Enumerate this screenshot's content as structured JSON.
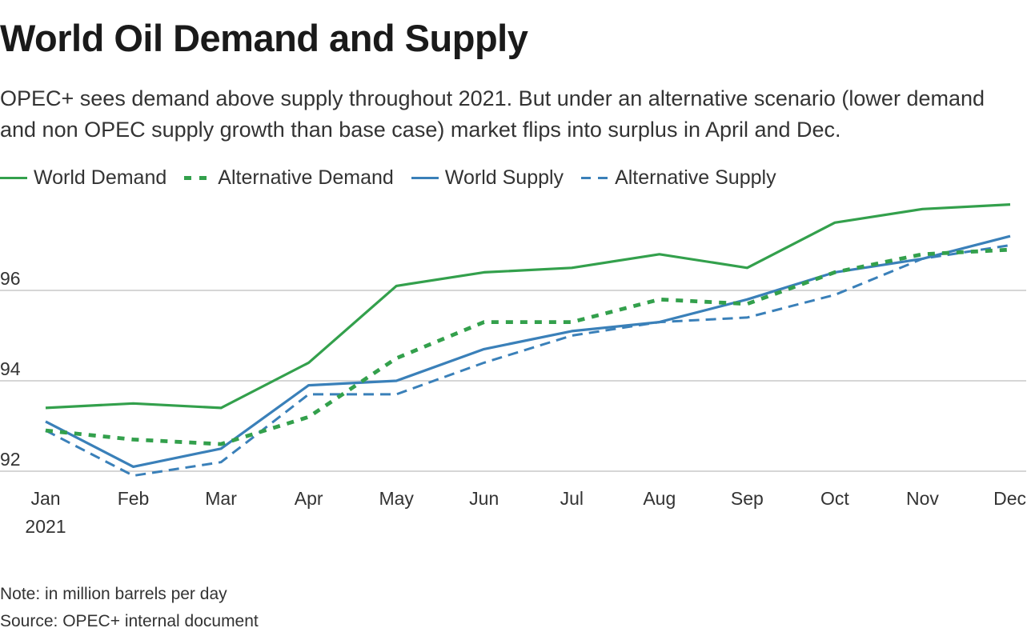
{
  "title": "World Oil Demand and Supply",
  "subtitle": "OPEC+ sees demand above supply throughout 2021. But under an alternative scenario (lower demand and non OPEC supply growth than base case) market flips into surplus in April and Dec.",
  "notes": {
    "note": "Note: in million barrels per day",
    "source": "Source: OPEC+ internal document"
  },
  "colors": {
    "green": "#33a04c",
    "blue": "#3a80b9",
    "grid": "#c8c8c8",
    "axis_text": "#333333"
  },
  "chart_data": {
    "type": "line",
    "title": "World Oil Demand and Supply",
    "xlabel": "",
    "ylabel": "",
    "categories": [
      "Jan",
      "Feb",
      "Mar",
      "Apr",
      "May",
      "Jun",
      "Jul",
      "Aug",
      "Sep",
      "Oct",
      "Nov",
      "Dec"
    ],
    "year_label": "2021",
    "y_ticks": [
      92,
      94,
      96
    ],
    "ylim": [
      92,
      98.5
    ],
    "grid": true,
    "legend_position": "top-left",
    "series": [
      {
        "name": "World Demand",
        "color": "#33a04c",
        "style": "solid",
        "values": [
          93.4,
          93.5,
          93.4,
          94.4,
          96.1,
          96.4,
          96.5,
          96.8,
          96.5,
          97.5,
          97.8,
          97.9
        ]
      },
      {
        "name": "Alternative Demand",
        "color": "#33a04c",
        "style": "dotted",
        "values": [
          92.9,
          92.7,
          92.6,
          93.2,
          94.5,
          95.3,
          95.3,
          95.8,
          95.7,
          96.4,
          96.8,
          96.9
        ]
      },
      {
        "name": "World Supply",
        "color": "#3a80b9",
        "style": "solid",
        "values": [
          93.1,
          92.1,
          92.5,
          93.9,
          94.0,
          94.7,
          95.1,
          95.3,
          95.8,
          96.4,
          96.7,
          97.2
        ]
      },
      {
        "name": "Alternative Supply",
        "color": "#3a80b9",
        "style": "dashed",
        "values": [
          92.9,
          91.9,
          92.2,
          93.7,
          93.7,
          94.4,
          95.0,
          95.3,
          95.4,
          95.9,
          96.7,
          97.0
        ]
      }
    ]
  }
}
